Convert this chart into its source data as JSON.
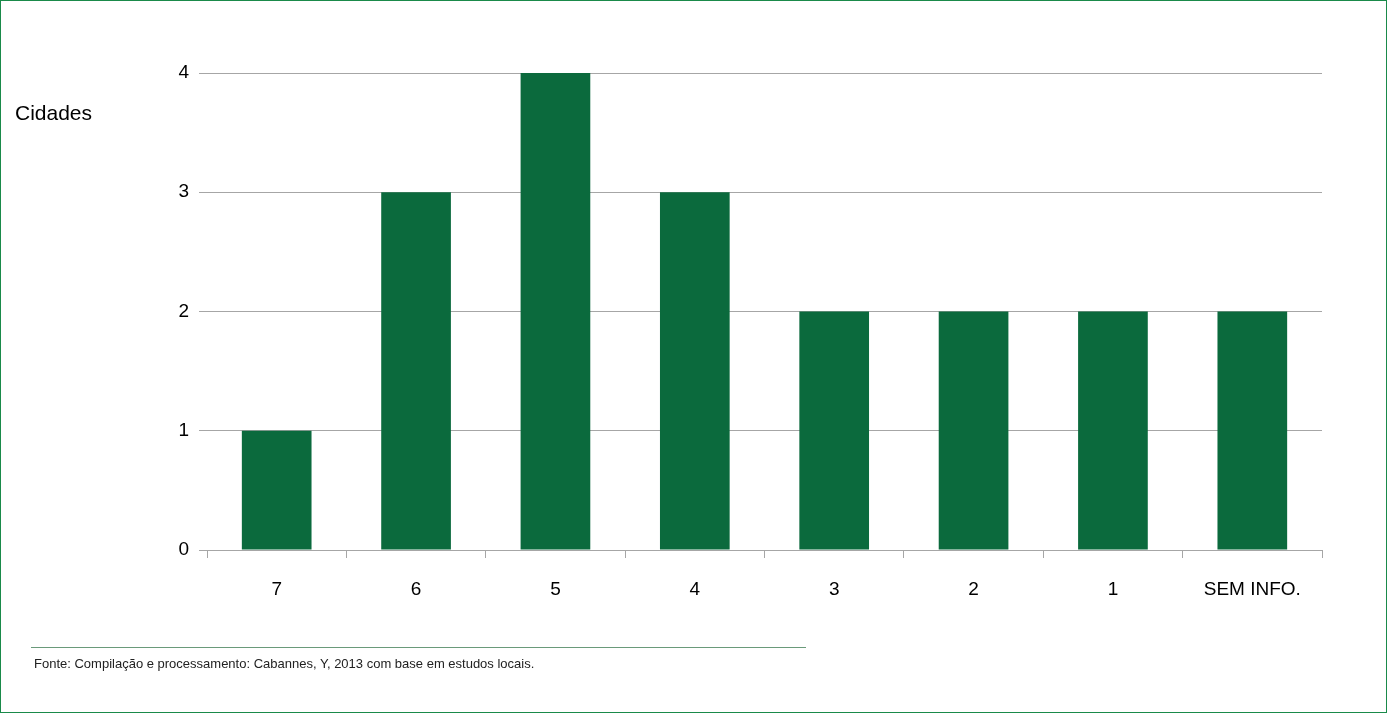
{
  "chart_data": {
    "type": "bar",
    "ylabel": "Cidades",
    "categories": [
      "7",
      "6",
      "5",
      "4",
      "3",
      "2",
      "1",
      "SEM INFO."
    ],
    "values": [
      1,
      3,
      4,
      3,
      2,
      2,
      2,
      2
    ],
    "color": "#0b6a3d",
    "ylim": [
      0,
      4
    ],
    "yticks": [
      0,
      1,
      2,
      3,
      4
    ],
    "grid": "y",
    "legend": false,
    "annotations": [
      "Fonte: Compilação e processamento: Cabannes, Y, 2013 com base em estudos locais."
    ]
  }
}
